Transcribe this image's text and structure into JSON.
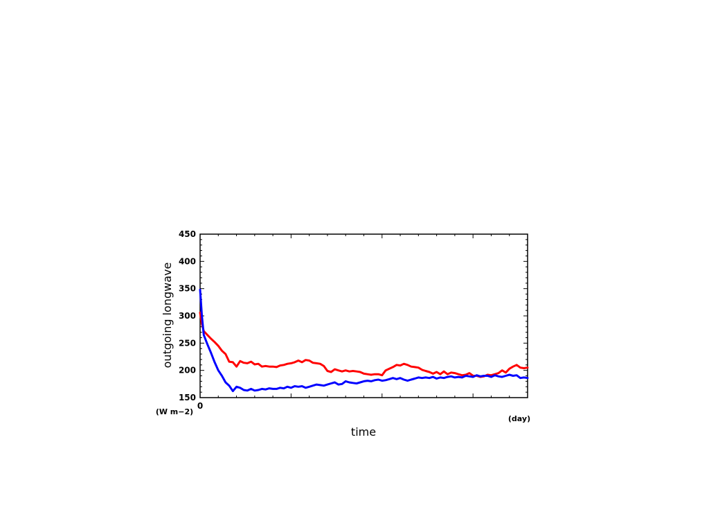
{
  "chart_data": {
    "type": "line",
    "title": "",
    "xlabel": "time",
    "ylabel": "outgoing longwave",
    "x_unit": "(day)",
    "y_unit": "(W m−2)",
    "xlim": [
      0,
      180
    ],
    "ylim": [
      150,
      450
    ],
    "yticks": [
      150,
      200,
      250,
      300,
      350,
      400,
      450
    ],
    "xticks": [
      "0"
    ],
    "grid": false,
    "legend": "none",
    "series": [
      {
        "color": "#ff0000",
        "x": [
          0,
          1,
          2,
          4,
          6,
          8,
          10,
          12,
          14,
          16,
          18,
          20,
          22,
          24,
          26,
          28,
          30,
          32,
          34,
          36,
          38,
          40,
          42,
          44,
          46,
          48,
          50,
          52,
          54,
          56,
          58,
          60,
          62,
          64,
          66,
          68,
          70,
          72,
          74,
          76,
          78,
          80,
          82,
          84,
          86,
          88,
          90,
          92,
          94,
          96,
          98,
          100,
          102,
          104,
          106,
          108,
          110,
          112,
          114,
          116,
          118,
          120,
          122,
          124,
          126,
          128,
          130,
          132,
          134,
          136,
          138,
          140,
          142,
          144,
          146,
          148,
          150,
          152,
          154,
          156,
          158,
          160,
          162,
          164,
          166,
          168,
          170,
          172,
          174,
          176,
          178,
          180
        ],
        "values": [
          306,
          285,
          272,
          265,
          258,
          252,
          245,
          236,
          230,
          216,
          215,
          207,
          217,
          214,
          213,
          216,
          211,
          212,
          207,
          208,
          207,
          207,
          206,
          209,
          210,
          212,
          213,
          215,
          218,
          215,
          219,
          218,
          214,
          213,
          212,
          208,
          199,
          197,
          202,
          200,
          198,
          200,
          198,
          199,
          198,
          197,
          194,
          193,
          192,
          193,
          193,
          191,
          200,
          203,
          206,
          210,
          209,
          212,
          210,
          207,
          206,
          205,
          201,
          199,
          197,
          194,
          197,
          193,
          198,
          193,
          196,
          195,
          193,
          191,
          192,
          195,
          190,
          190,
          188,
          189,
          192,
          191,
          193,
          195,
          200,
          196,
          203,
          207,
          210,
          205,
          204,
          205
        ]
      },
      {
        "color": "#0000ff",
        "x": [
          0,
          1,
          2,
          4,
          6,
          8,
          10,
          12,
          14,
          16,
          18,
          20,
          22,
          24,
          26,
          28,
          30,
          32,
          34,
          36,
          38,
          40,
          42,
          44,
          46,
          48,
          50,
          52,
          54,
          56,
          58,
          60,
          62,
          64,
          66,
          68,
          70,
          72,
          74,
          76,
          78,
          80,
          82,
          84,
          86,
          88,
          90,
          92,
          94,
          96,
          98,
          100,
          102,
          104,
          106,
          108,
          110,
          112,
          114,
          116,
          118,
          120,
          122,
          124,
          126,
          128,
          130,
          132,
          134,
          136,
          138,
          140,
          142,
          144,
          146,
          148,
          150,
          152,
          154,
          156,
          158,
          160,
          162,
          164,
          166,
          168,
          170,
          172,
          174,
          176,
          178,
          180
        ],
        "values": [
          348,
          300,
          265,
          248,
          232,
          215,
          200,
          190,
          178,
          172,
          162,
          170,
          168,
          164,
          163,
          166,
          163,
          164,
          166,
          165,
          167,
          166,
          166,
          168,
          167,
          170,
          168,
          171,
          170,
          171,
          168,
          170,
          172,
          174,
          173,
          172,
          174,
          176,
          178,
          174,
          175,
          180,
          178,
          177,
          176,
          178,
          180,
          181,
          180,
          182,
          183,
          181,
          182,
          184,
          186,
          184,
          186,
          183,
          181,
          183,
          185,
          187,
          186,
          187,
          186,
          188,
          185,
          187,
          186,
          188,
          189,
          187,
          188,
          187,
          190,
          189,
          188,
          191,
          189,
          190,
          190,
          188,
          191,
          189,
          188,
          190,
          192,
          190,
          191,
          186,
          187,
          186
        ]
      }
    ]
  }
}
